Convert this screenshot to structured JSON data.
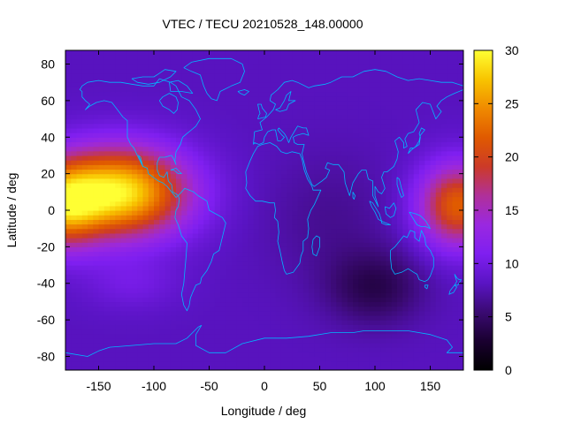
{
  "chart_data": {
    "type": "heatmap",
    "title": "VTEC / TECU 20210528_148.00000",
    "xlabel": "Longitude / deg",
    "ylabel": "Latitude / deg",
    "xlim": [
      -180,
      180
    ],
    "ylim": [
      -87.5,
      87.5
    ],
    "xticks": [
      "-150",
      "-100",
      "-50",
      "0",
      "50",
      "100",
      "150"
    ],
    "yticks": [
      "80",
      "60",
      "40",
      "20",
      "0",
      "-20",
      "-40",
      "-60",
      "-80"
    ],
    "colorbar": {
      "range": [
        0,
        30
      ],
      "ticks": [
        "30",
        "25",
        "20",
        "15",
        "10",
        "5",
        "0"
      ],
      "palette": [
        "#000000",
        "#1a0030",
        "#3a0a72",
        "#5a14c4",
        "#7f1ff0",
        "#9a28e0",
        "#b0309a",
        "#cc3a28",
        "#e05a00",
        "#f08a00",
        "#f8c400",
        "#ffff33"
      ]
    },
    "overlay": "coastlines",
    "overlay_color": "#00b7ff",
    "grid": false,
    "field_notes": {
      "background_level": 8,
      "peaks": [
        {
          "lon": -130,
          "lat": 10,
          "value": 29
        },
        {
          "lon": 175,
          "lat": 3,
          "value": 22
        }
      ],
      "minimum": {
        "lon": 100,
        "lat": -42,
        "value": 4
      }
    }
  }
}
